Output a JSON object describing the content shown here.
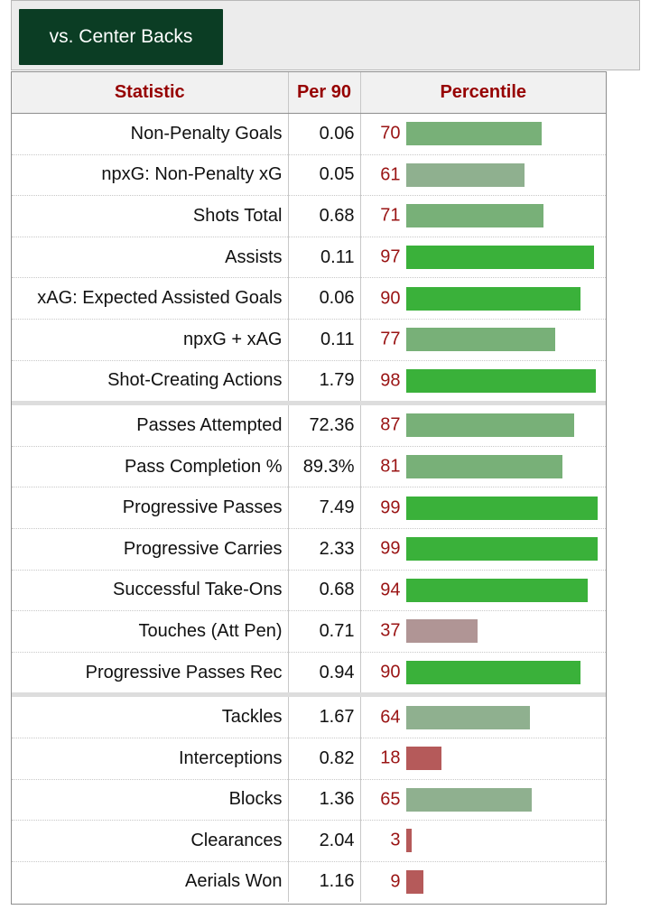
{
  "tabs": [
    {
      "label": "vs. Center Backs"
    }
  ],
  "table": {
    "headers": {
      "statistic": "Statistic",
      "per90": "Per 90",
      "percentile": "Percentile"
    },
    "groups": [
      [
        {
          "stat": "Non-Penalty Goals",
          "per90": "0.06",
          "percentile": 70
        },
        {
          "stat": "npxG: Non-Penalty xG",
          "per90": "0.05",
          "percentile": 61
        },
        {
          "stat": "Shots Total",
          "per90": "0.68",
          "percentile": 71
        },
        {
          "stat": "Assists",
          "per90": "0.11",
          "percentile": 97
        },
        {
          "stat": "xAG: Expected Assisted Goals",
          "per90": "0.06",
          "percentile": 90
        },
        {
          "stat": "npxG + xAG",
          "per90": "0.11",
          "percentile": 77
        },
        {
          "stat": "Shot-Creating Actions",
          "per90": "1.79",
          "percentile": 98
        }
      ],
      [
        {
          "stat": "Passes Attempted",
          "per90": "72.36",
          "percentile": 87
        },
        {
          "stat": "Pass Completion %",
          "per90": "89.3%",
          "percentile": 81
        },
        {
          "stat": "Progressive Passes",
          "per90": "7.49",
          "percentile": 99
        },
        {
          "stat": "Progressive Carries",
          "per90": "2.33",
          "percentile": 99
        },
        {
          "stat": "Successful Take-Ons",
          "per90": "0.68",
          "percentile": 94
        },
        {
          "stat": "Touches (Att Pen)",
          "per90": "0.71",
          "percentile": 37
        },
        {
          "stat": "Progressive Passes Rec",
          "per90": "0.94",
          "percentile": 90
        }
      ],
      [
        {
          "stat": "Tackles",
          "per90": "1.67",
          "percentile": 64
        },
        {
          "stat": "Interceptions",
          "per90": "0.82",
          "percentile": 18
        },
        {
          "stat": "Blocks",
          "per90": "1.36",
          "percentile": 65
        },
        {
          "stat": "Clearances",
          "per90": "2.04",
          "percentile": 3
        },
        {
          "stat": "Aerials Won",
          "per90": "1.16",
          "percentile": 9
        }
      ]
    ]
  }
}
